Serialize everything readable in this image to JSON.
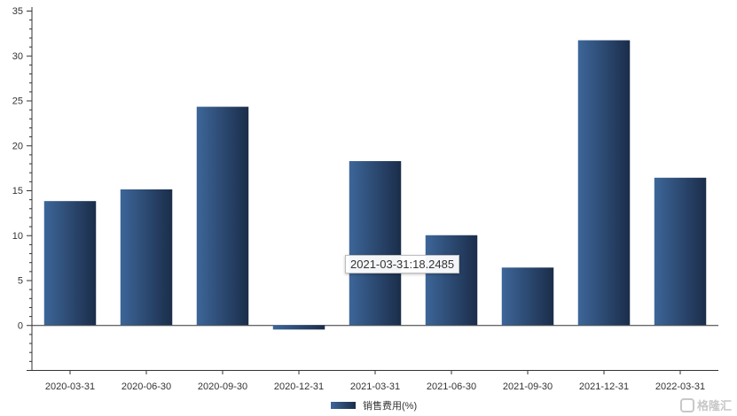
{
  "chart_data": {
    "type": "bar",
    "categories": [
      "2020-03-31",
      "2020-06-30",
      "2020-09-30",
      "2020-12-31",
      "2021-03-31",
      "2021-06-30",
      "2021-09-30",
      "2021-12-31",
      "2022-03-31"
    ],
    "series": [
      {
        "name": "销售费用(%)",
        "values": [
          13.8,
          15.1,
          24.3,
          -0.5,
          18.2485,
          10.0,
          6.4,
          31.7,
          16.4
        ]
      }
    ],
    "y_ticks": [
      0,
      5,
      10,
      15,
      20,
      25,
      30,
      35
    ],
    "ylim": [
      -5,
      35
    ],
    "grid": false,
    "legend_position": "bottom-center",
    "bar_color_start": "#3d6699",
    "bar_color_end": "#1b2d4a"
  },
  "tooltip": {
    "text": "2021-03-31:18.2485"
  },
  "watermark": {
    "text": "格隆汇"
  }
}
